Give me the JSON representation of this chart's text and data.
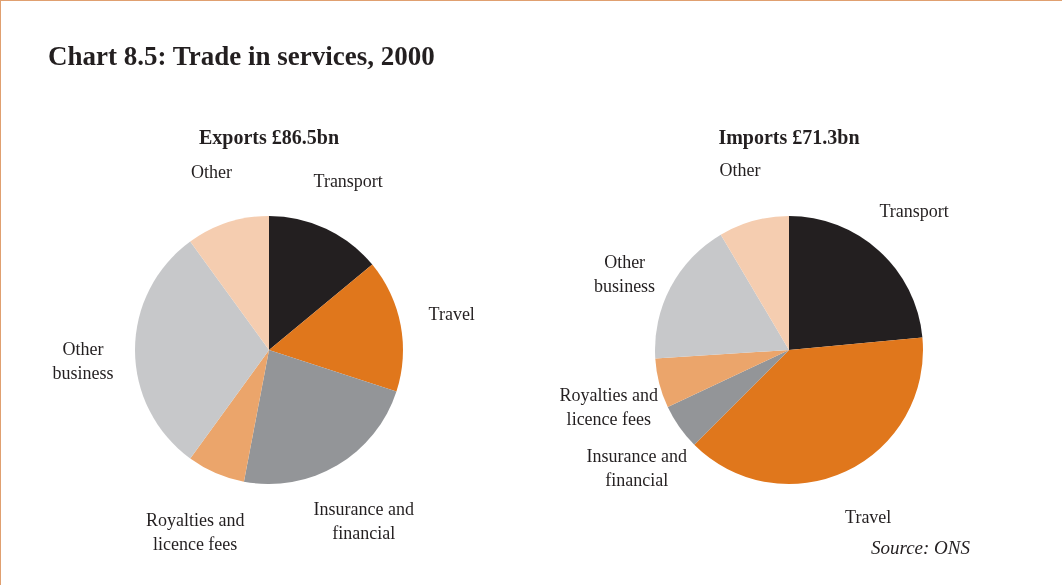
{
  "chart_data": [
    {
      "type": "pie",
      "title": "Chart 8.5: Trade in services, 2000",
      "subtitle": "Exports £86.5bn",
      "categories": [
        "Transport",
        "Travel",
        "Insurance and financial",
        "Royalties and licence fees",
        "Other business",
        "Other"
      ],
      "values": [
        14,
        16,
        23,
        7,
        30,
        10
      ],
      "colors": [
        "#231f20",
        "#e0771c",
        "#939598",
        "#eba56b",
        "#c7c8ca",
        "#f5cdb0"
      ]
    },
    {
      "type": "pie",
      "subtitle": "Imports £71.3bn",
      "categories": [
        "Transport",
        "Travel",
        "Insurance and financial",
        "Royalties and licence fees",
        "Other business",
        "Other"
      ],
      "values": [
        23.5,
        39,
        5.5,
        6,
        17.5,
        8.5
      ],
      "colors": [
        "#231f20",
        "#e0771c",
        "#939598",
        "#eba56b",
        "#c7c8ca",
        "#f5cdb0"
      ],
      "annotations": [
        "Source: ONS"
      ]
    }
  ]
}
